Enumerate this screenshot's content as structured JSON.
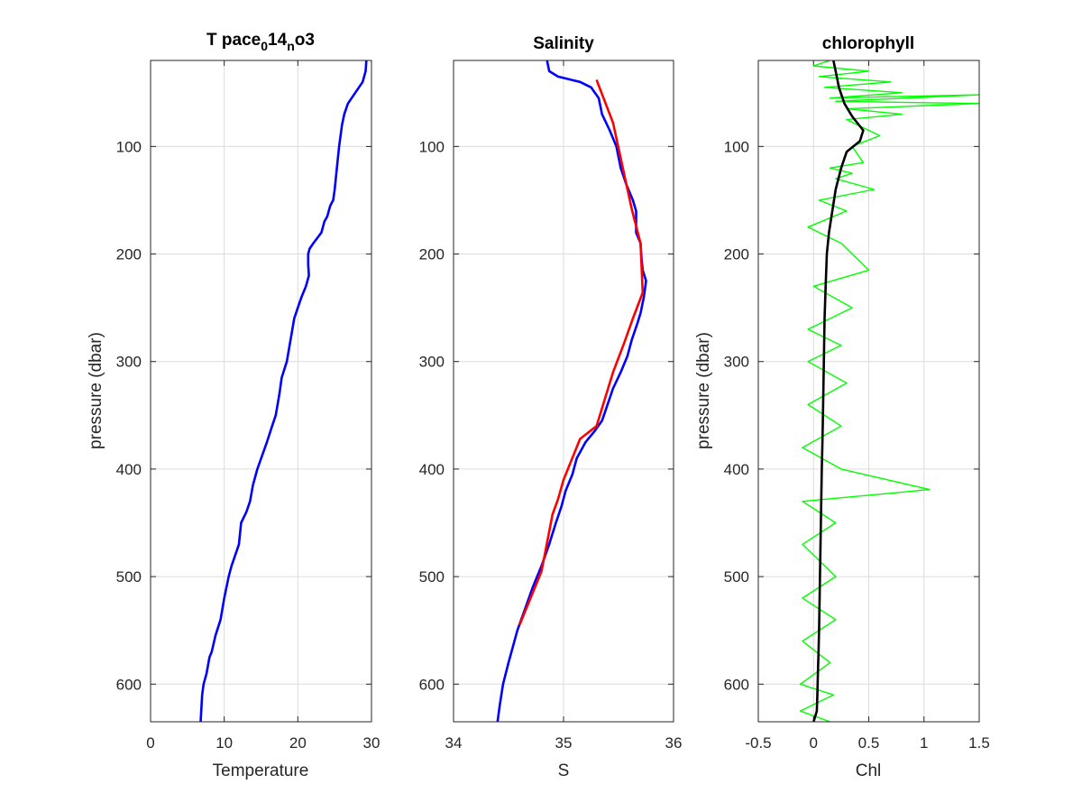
{
  "chart_data": [
    {
      "type": "line",
      "title": "T pace",
      "title_parts": {
        "base": "T pace",
        "sub1": "0",
        "mid": "14",
        "sub2": "n",
        "tail": "o3"
      },
      "xlabel": "Temperature",
      "ylabel": "pressure (dbar)",
      "xlim": [
        0,
        30
      ],
      "ylim": [
        20,
        635
      ],
      "y_reversed": true,
      "grid": true,
      "xticks": [
        "0",
        "10",
        "20",
        "30"
      ],
      "yticks": [
        "100",
        "200",
        "300",
        "400",
        "500",
        "600"
      ],
      "series": [
        {
          "color": "#0000ff",
          "x": [
            29.3,
            29.2,
            28.8,
            27.8,
            26.8,
            26.3,
            26.0,
            25.6,
            25.3,
            25.0,
            24.8,
            24.4,
            24.2,
            24.0,
            23.6,
            23.2,
            22.1,
            21.6,
            21.4,
            21.4,
            21.5,
            21.1,
            20.5,
            20.0,
            19.5,
            19.0,
            18.5,
            17.8,
            17.5,
            17.0,
            16.5,
            15.8,
            14.5,
            13.9,
            13.5,
            13.0,
            12.3,
            12.0,
            11.5,
            11.0,
            10.6,
            10.0,
            9.5,
            8.8,
            8.3,
            8.0,
            7.6,
            7.2,
            7.0,
            6.8
          ],
          "y": [
            20,
            30,
            40,
            50,
            60,
            70,
            80,
            100,
            120,
            140,
            150,
            155,
            160,
            165,
            170,
            180,
            190,
            195,
            200,
            210,
            220,
            230,
            240,
            250,
            260,
            280,
            300,
            315,
            330,
            350,
            360,
            375,
            400,
            415,
            430,
            440,
            450,
            470,
            480,
            490,
            500,
            520,
            540,
            555,
            570,
            575,
            590,
            600,
            610,
            635
          ]
        }
      ]
    },
    {
      "type": "line",
      "title": "Salinity",
      "xlabel": "S",
      "ylabel": "",
      "xlim": [
        34,
        36
      ],
      "ylim": [
        20,
        635
      ],
      "y_reversed": true,
      "grid": true,
      "xticks": [
        "34",
        "35",
        "36"
      ],
      "yticks": [
        "100",
        "200",
        "300",
        "400",
        "500",
        "600"
      ],
      "series": [
        {
          "color": "#0000ff",
          "x": [
            34.85,
            34.87,
            34.95,
            35.15,
            35.25,
            35.32,
            35.35,
            35.42,
            35.48,
            35.52,
            35.57,
            35.63,
            35.66,
            35.66,
            35.7,
            35.71,
            35.72,
            35.75,
            35.73,
            35.7,
            35.67,
            35.62,
            35.58,
            35.52,
            35.45,
            35.4,
            35.35,
            35.28,
            35.2,
            35.12,
            35.08,
            35.02,
            34.98,
            34.93,
            34.87,
            34.8,
            34.72,
            34.65,
            34.58,
            34.5,
            34.45,
            34.42,
            34.4
          ],
          "y": [
            20,
            30,
            35,
            40,
            45,
            55,
            70,
            85,
            100,
            120,
            135,
            150,
            160,
            180,
            190,
            205,
            215,
            225,
            240,
            255,
            265,
            280,
            295,
            310,
            325,
            340,
            355,
            365,
            375,
            390,
            405,
            420,
            435,
            450,
            470,
            490,
            510,
            530,
            550,
            580,
            600,
            620,
            635
          ]
        },
        {
          "color": "#ff0000",
          "x": [
            35.3,
            35.45,
            35.62,
            35.7,
            35.72,
            35.63,
            35.55,
            35.45,
            35.3,
            35.15,
            35.0,
            34.95,
            34.9,
            34.8,
            34.6
          ],
          "y": [
            38,
            78,
            158,
            190,
            236,
            260,
            283,
            310,
            360,
            372,
            410,
            428,
            442,
            495,
            545
          ]
        }
      ]
    },
    {
      "type": "line",
      "title": "chlorophyll",
      "xlabel": "Chl",
      "ylabel": "pressure (dbar)",
      "xlim": [
        -0.5,
        1.5
      ],
      "ylim": [
        20,
        635
      ],
      "y_reversed": true,
      "grid": true,
      "xticks": [
        "-0.5",
        "0",
        "0.5",
        "1",
        "1.5"
      ],
      "yticks": [
        "100",
        "200",
        "300",
        "400",
        "500",
        "600"
      ],
      "series": [
        {
          "color": "#00ff00",
          "x": [
            0.15,
            0.0,
            0.5,
            0.05,
            0.7,
            0.1,
            0.8,
            0.15,
            1.5,
            0.2,
            1.5,
            0.3,
            0.8,
            0.3,
            0.5,
            0.6,
            0.35,
            0.45,
            0.15,
            0.35,
            0.2,
            0.55,
            0.05,
            0.3,
            -0.05,
            0.25,
            0.5,
            0.0,
            0.35,
            -0.05,
            0.25,
            -0.05,
            0.3,
            -0.05,
            0.25,
            -0.1,
            0.25,
            1.05,
            -0.1,
            0.2,
            -0.1,
            0.2,
            -0.1,
            0.2,
            -0.1,
            0.15,
            -0.12,
            0.18,
            -0.12,
            0.15
          ],
          "y": [
            20,
            25,
            30,
            35,
            40,
            45,
            50,
            55,
            52,
            58,
            60,
            65,
            70,
            75,
            85,
            90,
            100,
            115,
            120,
            125,
            130,
            140,
            150,
            160,
            175,
            190,
            215,
            230,
            250,
            270,
            285,
            300,
            320,
            340,
            360,
            380,
            400,
            419,
            430,
            450,
            470,
            500,
            520,
            540,
            560,
            580,
            600,
            610,
            625,
            635
          ]
        },
        {
          "color": "#000000",
          "x": [
            0.18,
            0.2,
            0.23,
            0.28,
            0.35,
            0.45,
            0.42,
            0.3,
            0.25,
            0.2,
            0.17,
            0.14,
            0.12,
            0.11,
            0.1,
            0.095,
            0.09,
            0.085,
            0.08,
            0.075,
            0.07,
            0.065,
            0.06,
            0.055,
            0.05,
            0.045,
            0.04,
            0.035,
            0.03,
            0.0
          ],
          "y": [
            20,
            30,
            45,
            60,
            72,
            85,
            95,
            105,
            120,
            140,
            160,
            180,
            200,
            230,
            260,
            290,
            320,
            350,
            380,
            400,
            430,
            460,
            490,
            520,
            550,
            570,
            590,
            610,
            625,
            635
          ]
        }
      ]
    }
  ]
}
